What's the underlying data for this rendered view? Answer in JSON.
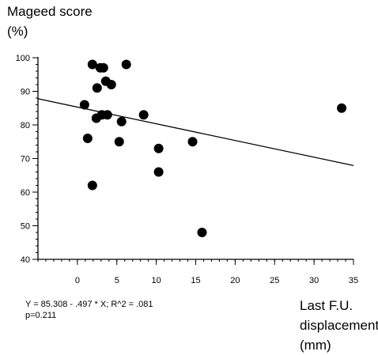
{
  "chart_data": {
    "type": "scatter",
    "ylabel_lines": [
      "Mageed score",
      "(%)"
    ],
    "xlabel_lines": [
      "Last F.U.",
      "displacement",
      "(mm)"
    ],
    "annotation_lines": [
      "Y = 85.308 - .497 * X; R^2 = .081",
      "p=0.211"
    ],
    "xlim": [
      -5,
      35
    ],
    "ylim": [
      40,
      100
    ],
    "x_ticks": [
      0,
      5,
      10,
      15,
      20,
      25,
      30,
      35
    ],
    "y_ticks": [
      40,
      50,
      60,
      70,
      80,
      90,
      100
    ],
    "points": [
      {
        "x": 0.9,
        "y": 86
      },
      {
        "x": 1.3,
        "y": 76
      },
      {
        "x": 1.9,
        "y": 98
      },
      {
        "x": 1.9,
        "y": 62
      },
      {
        "x": 2.4,
        "y": 82
      },
      {
        "x": 2.5,
        "y": 91
      },
      {
        "x": 2.9,
        "y": 97
      },
      {
        "x": 3.3,
        "y": 97
      },
      {
        "x": 3.1,
        "y": 83
      },
      {
        "x": 3.6,
        "y": 93
      },
      {
        "x": 3.8,
        "y": 83
      },
      {
        "x": 4.3,
        "y": 92
      },
      {
        "x": 5.3,
        "y": 75
      },
      {
        "x": 5.6,
        "y": 81
      },
      {
        "x": 6.2,
        "y": 98
      },
      {
        "x": 8.4,
        "y": 83
      },
      {
        "x": 10.3,
        "y": 73
      },
      {
        "x": 10.3,
        "y": 66
      },
      {
        "x": 14.6,
        "y": 75
      },
      {
        "x": 15.8,
        "y": 48
      },
      {
        "x": 33.5,
        "y": 85
      }
    ],
    "regression": {
      "intercept": 85.308,
      "slope": -0.497
    },
    "grid": false
  }
}
